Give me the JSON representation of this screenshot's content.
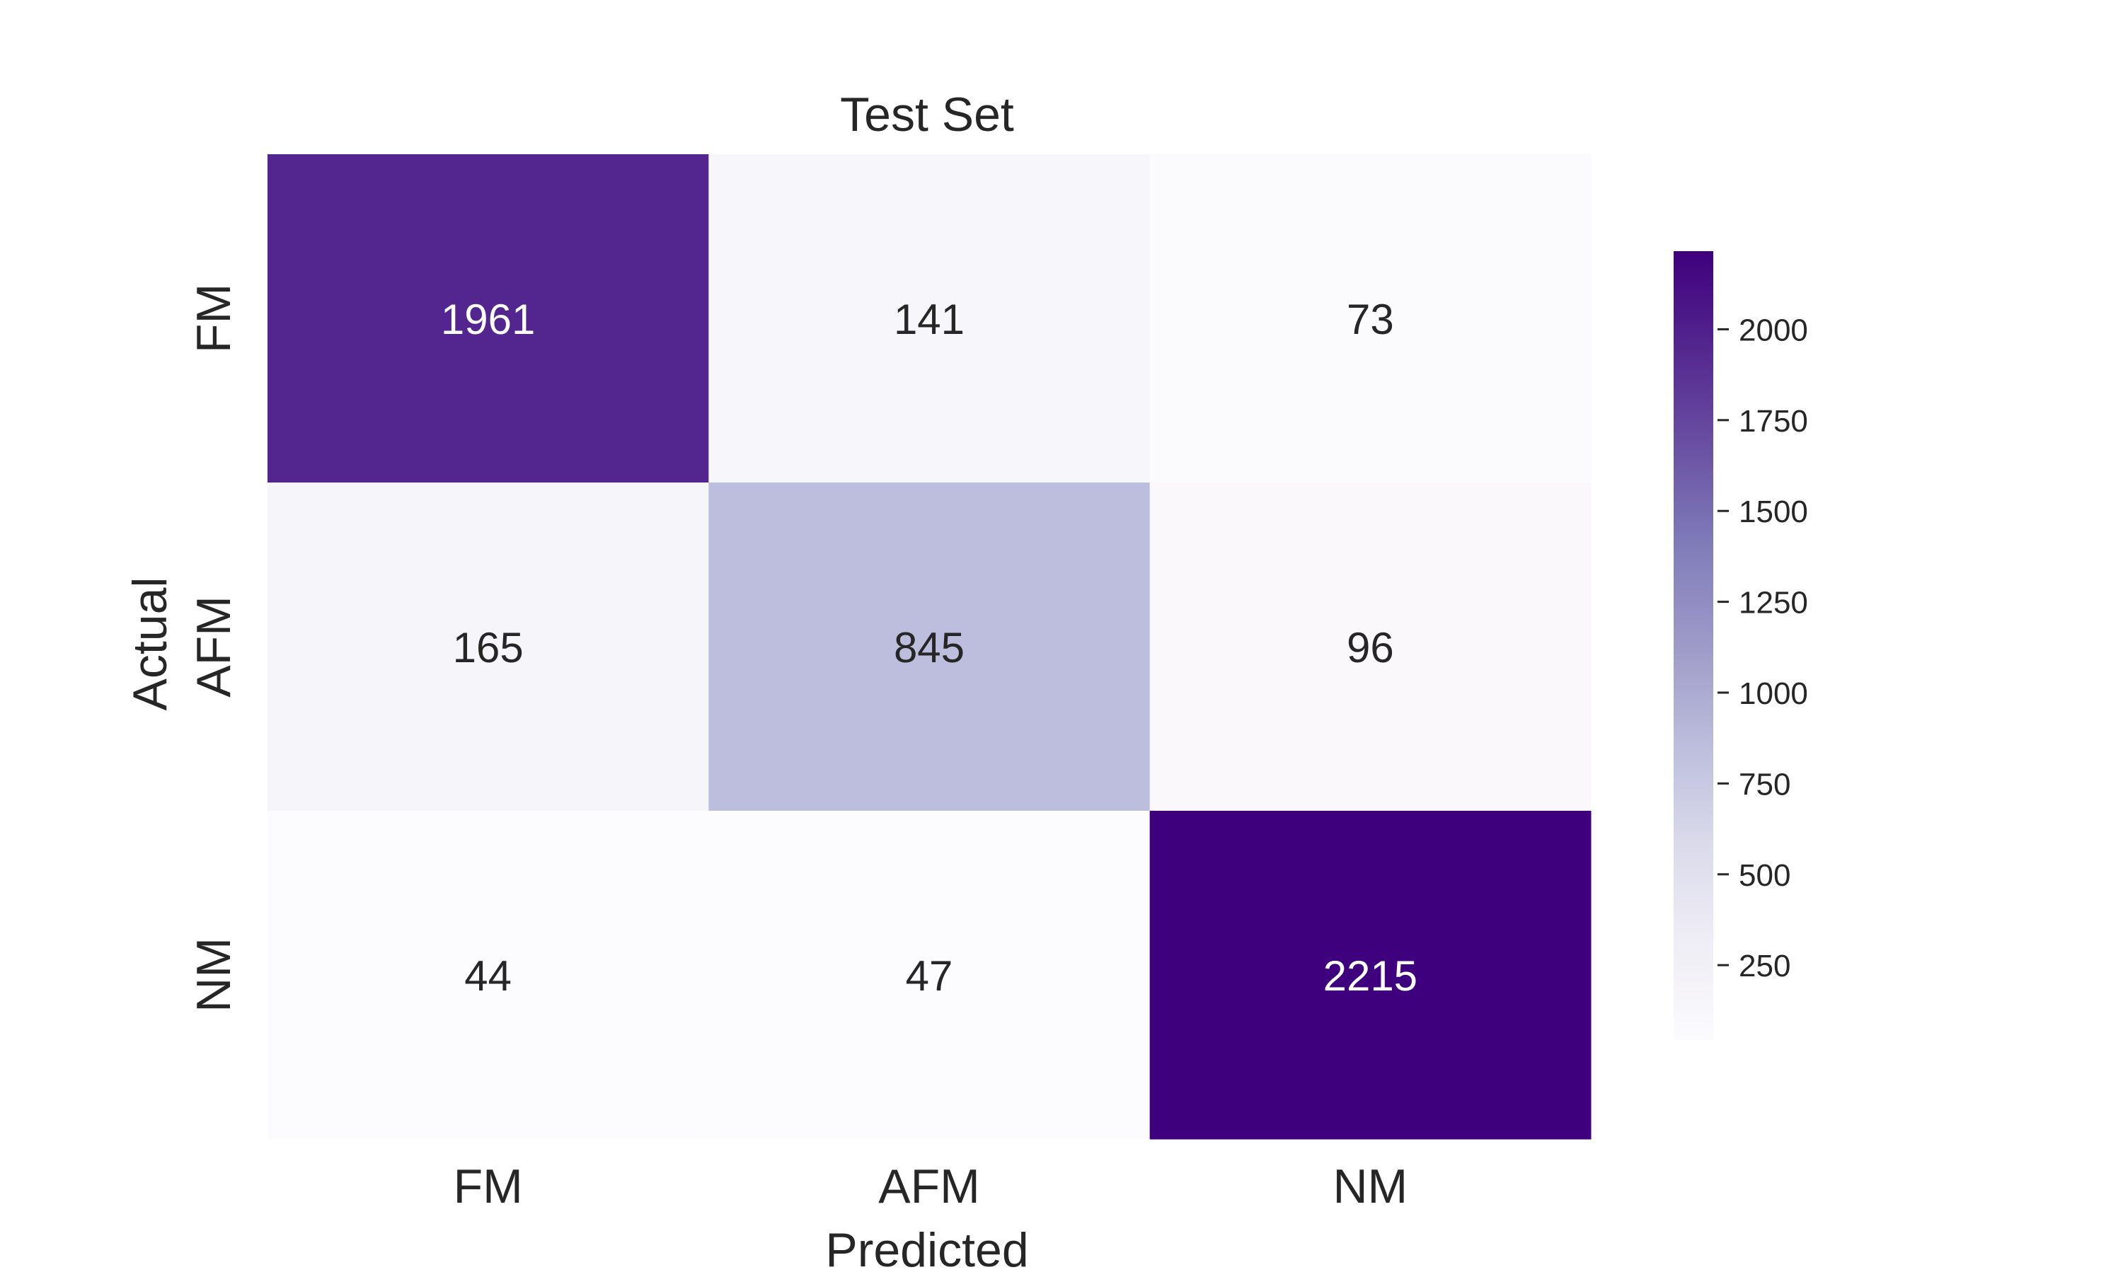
{
  "chart_data": {
    "type": "heatmap",
    "title": "Test Set",
    "xlabel": "Predicted",
    "ylabel": "Actual",
    "x_categories": [
      "FM",
      "AFM",
      "NM"
    ],
    "y_categories": [
      "FM",
      "AFM",
      "NM"
    ],
    "values": [
      [
        1961,
        141,
        73
      ],
      [
        165,
        845,
        96
      ],
      [
        44,
        47,
        2215
      ]
    ],
    "colormap": "Purples",
    "colorbar": {
      "min": 44,
      "max": 2215,
      "ticks": [
        250,
        500,
        750,
        1000,
        1250,
        1500,
        1750,
        2000
      ],
      "tick_labels": [
        "250",
        "500",
        "750",
        "1000",
        "1250",
        "1500",
        "1750",
        "2000"
      ]
    },
    "annotations": "cell values shown in each cell",
    "grid": false,
    "legend": "colorbar on the right"
  }
}
